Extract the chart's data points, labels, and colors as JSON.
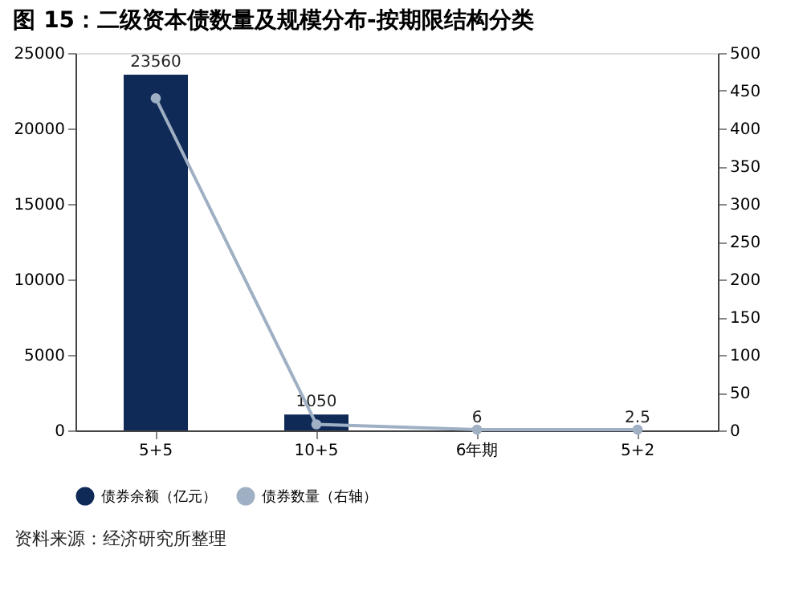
{
  "chart_data": {
    "type": "bar",
    "title": "图 15：二级资本债数量及规模分布-按期限结构分类",
    "categories": [
      "5+5",
      "10+5",
      "6年期",
      "5+2"
    ],
    "series": [
      {
        "name": "债券余额（亿元）",
        "color": "#0f2a57",
        "values": [
          23560,
          1050,
          6,
          2.5
        ],
        "value_labels": [
          "23560",
          "1050",
          "6",
          "2.5"
        ]
      },
      {
        "name": "债券数量（右轴）",
        "type": "line",
        "axis": "y2",
        "color": "#9fb0c4",
        "marker": "circle",
        "values": [
          440,
          8,
          1,
          1
        ]
      }
    ],
    "ylim": [
      0,
      25000
    ],
    "yticks": [
      0,
      5000,
      10000,
      15000,
      20000,
      25000
    ],
    "y2lim": [
      0,
      500
    ],
    "y2ticks": [
      0,
      50,
      100,
      150,
      200,
      250,
      300,
      350,
      400,
      450,
      500
    ],
    "legend": "bottom",
    "annotations": [
      "资料来源：经济研究所整理"
    ]
  }
}
